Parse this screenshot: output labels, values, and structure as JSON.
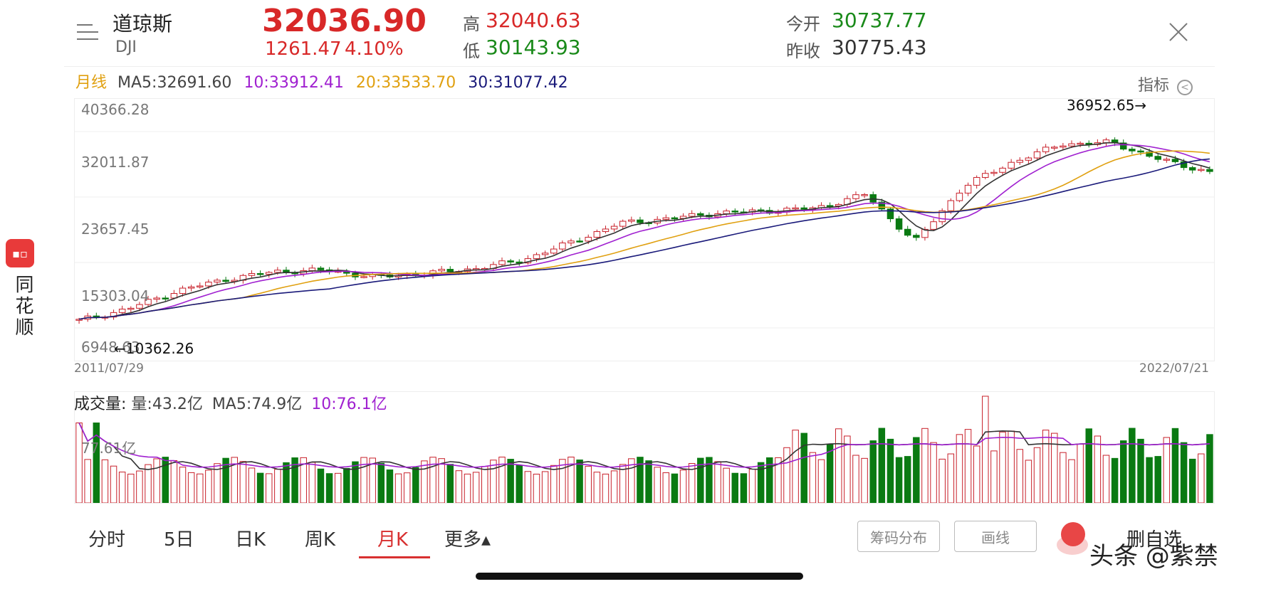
{
  "stock": {
    "name": "道琼斯",
    "code": "DJI",
    "price": "32036.90",
    "change": "1261.47",
    "change_pct": "4.10%",
    "high_label": "高",
    "high": "32040.63",
    "low_label": "低",
    "low": "30143.93",
    "open_label": "今开",
    "open": "30737.77",
    "prev_close_label": "昨收",
    "prev_close": "30775.43"
  },
  "ma_legend": {
    "period": "月线",
    "ma5": "MA5:32691.60",
    "ma10": "10:33912.41",
    "ma20": "20:33533.70",
    "ma30": "30:31077.42",
    "indicator_btn": "指标"
  },
  "price_axis": [
    "40366.28",
    "32011.87",
    "23657.45",
    "15303.04",
    "6948.63"
  ],
  "annotations": {
    "max": "36952.65→",
    "min": "←10362.26"
  },
  "dates": {
    "start": "2011/07/29",
    "end": "2022/07/21"
  },
  "volume": {
    "title": "成交量:",
    "vol": "量:43.2亿",
    "ma5": "MA5:74.9亿",
    "ma10": "10:76.1亿",
    "axis": "77.61亿"
  },
  "side_app": {
    "name": "同花顺"
  },
  "tabs": [
    "分时",
    "5日",
    "日K",
    "周K",
    "月K",
    "更多▴"
  ],
  "buttons": {
    "chips": "筹码分布",
    "draw": "画线",
    "del_fav": "删自选"
  },
  "watermark": "头条 @紫禁",
  "colors": {
    "up": "#c8202a",
    "down": "#0a7a12",
    "ma5": "#333333",
    "ma10": "#a020d0",
    "ma20": "#e0a010",
    "ma30": "#1a1a7a"
  },
  "chart_data": {
    "type": "candlestick",
    "series_points": [
      10500,
      12200,
      14800,
      16500,
      17600,
      17800,
      16800,
      17300,
      18000,
      19200,
      21800,
      24600,
      25300,
      26100,
      26400,
      26800,
      28800,
      21900,
      30000,
      33500,
      36100,
      36300,
      33800,
      32000
    ]
  }
}
